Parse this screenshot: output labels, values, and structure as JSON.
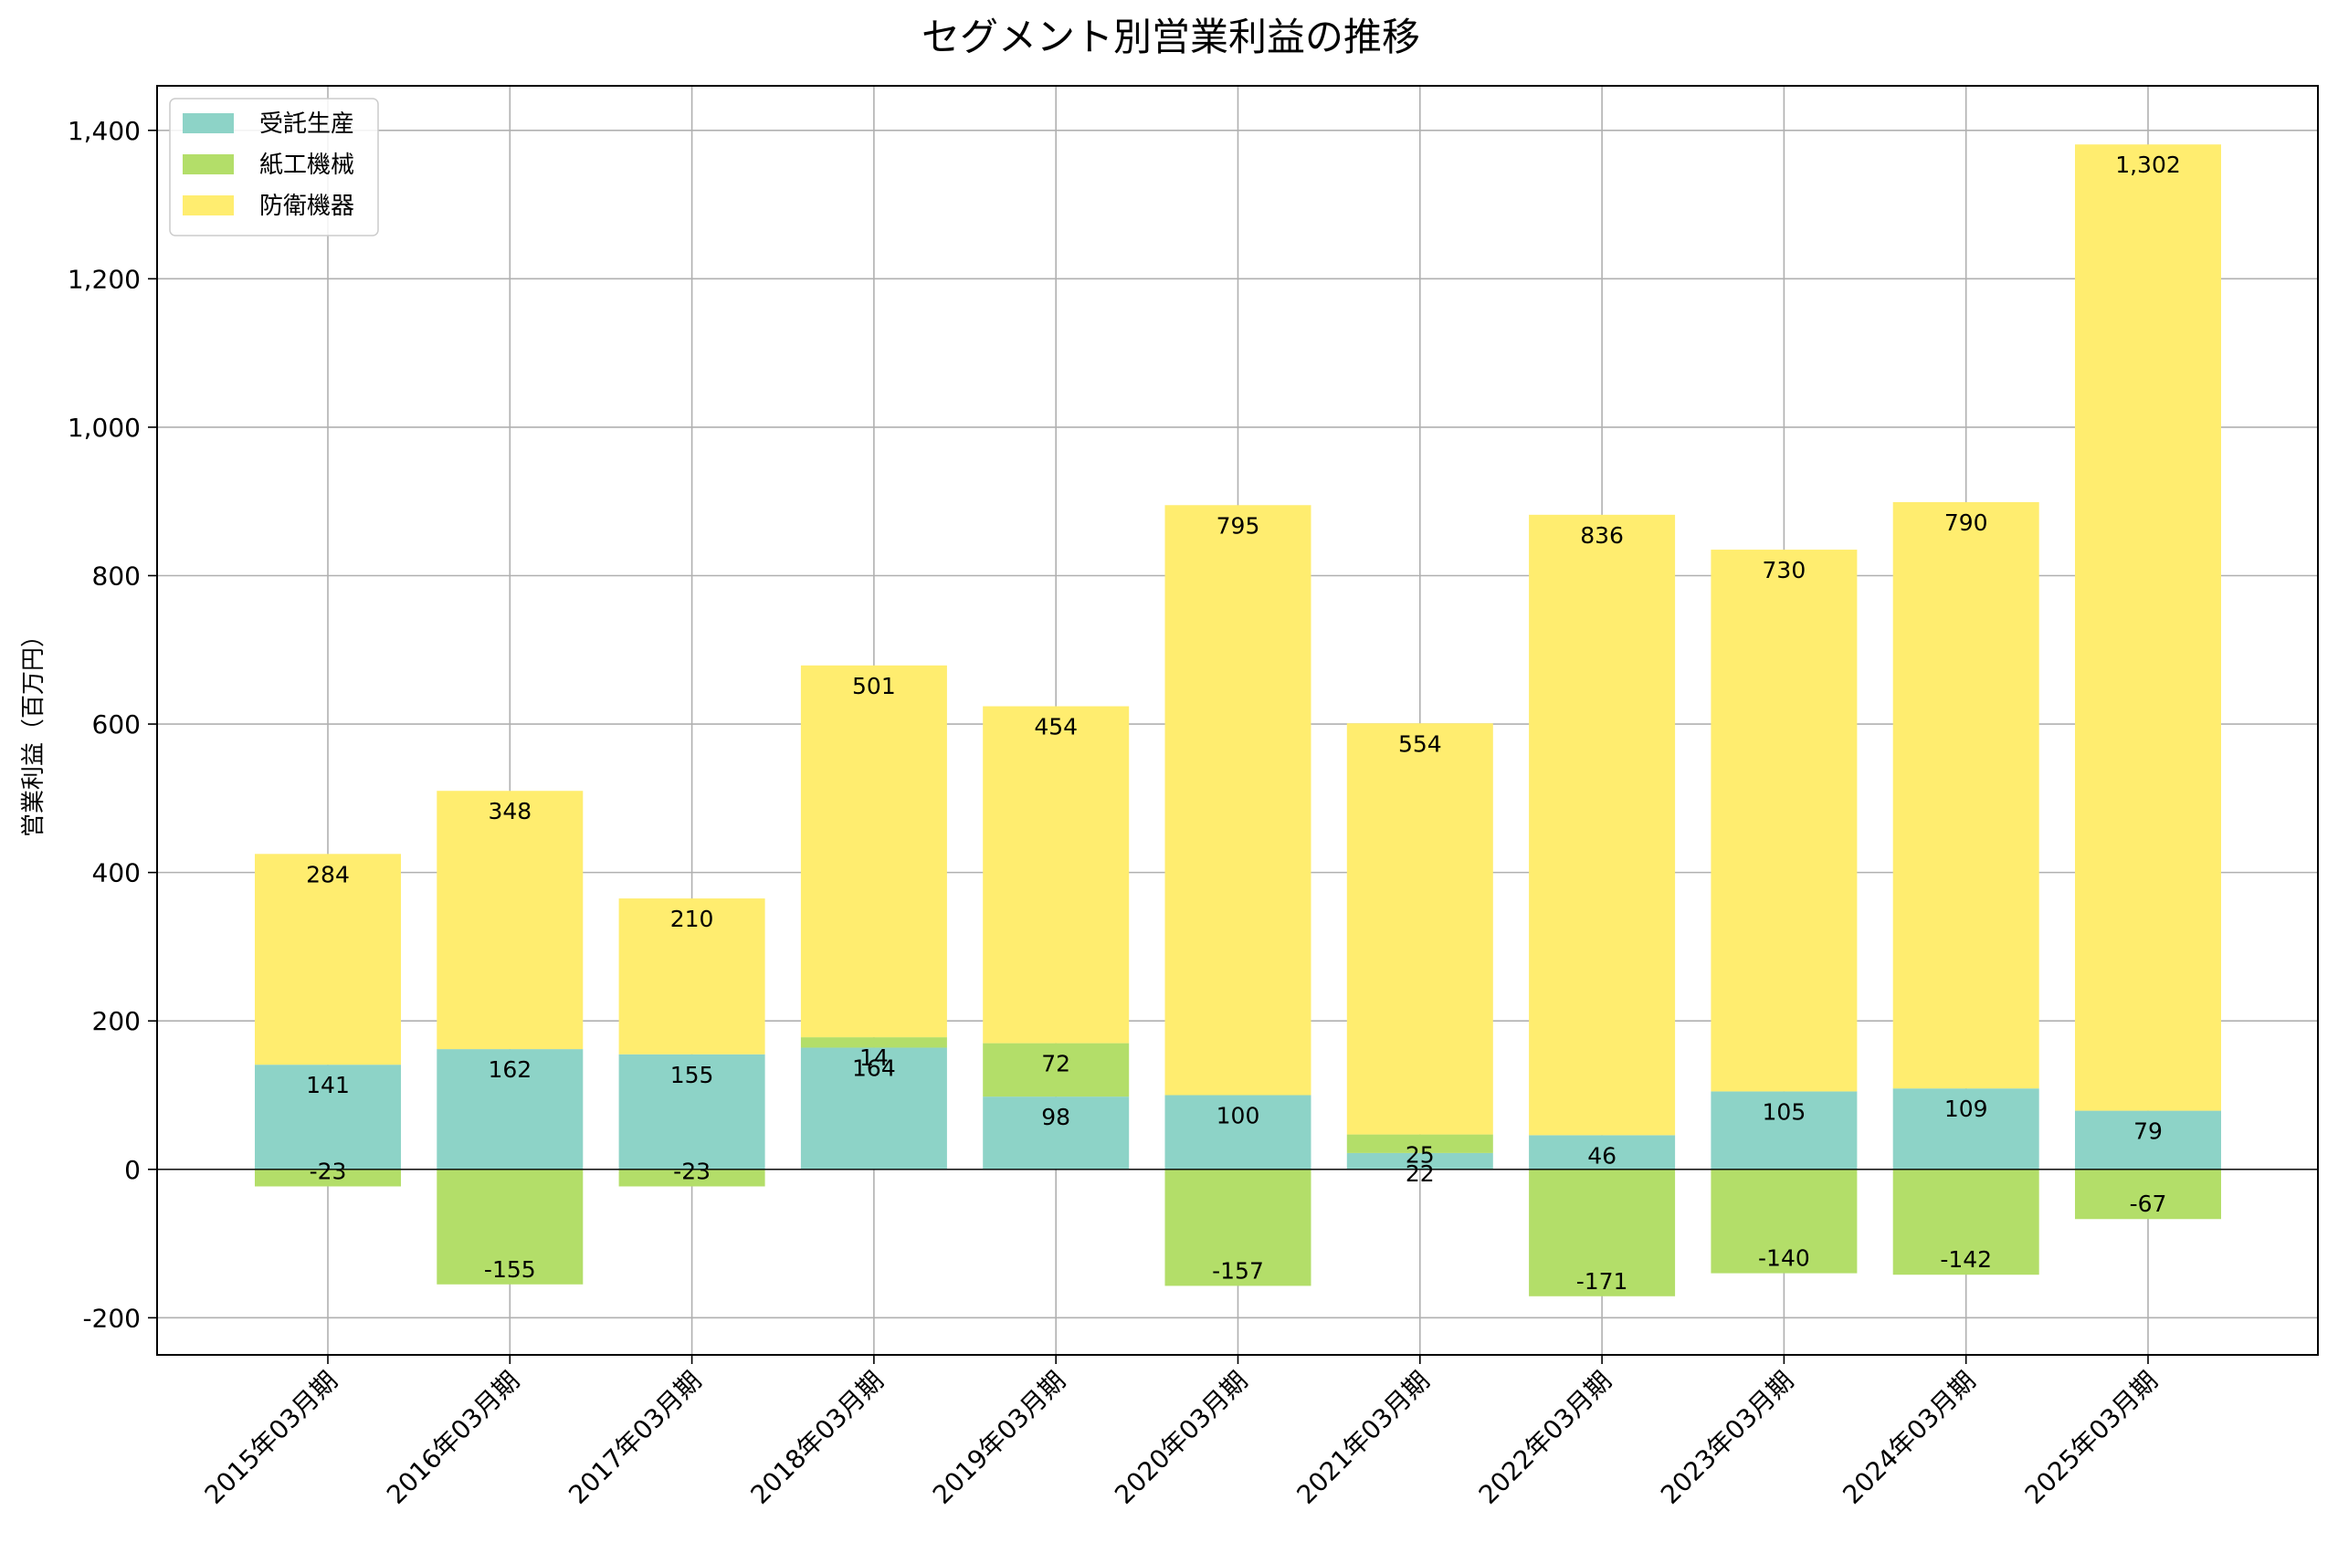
{
  "chart_data": {
    "type": "bar",
    "stacked": true,
    "title": "セグメント別営業利益の推移",
    "xlabel": "",
    "ylabel": "営業利益（百万円）",
    "categories": [
      "2015年03月期",
      "2016年03月期",
      "2017年03月期",
      "2018年03月期",
      "2019年03月期",
      "2020年03月期",
      "2021年03月期",
      "2022年03月期",
      "2023年03月期",
      "2024年03月期",
      "2025年03月期"
    ],
    "series": [
      {
        "name": "受託生産",
        "color": "#8dd3c7",
        "values": [
          141,
          162,
          155,
          164,
          98,
          100,
          22,
          46,
          105,
          109,
          79
        ]
      },
      {
        "name": "紙工機械",
        "color": "#b3de69",
        "values": [
          -23,
          -155,
          -23,
          14,
          72,
          -157,
          25,
          -171,
          -140,
          -142,
          -67
        ]
      },
      {
        "name": "防衛機器",
        "color": "#ffed6f",
        "values": [
          284,
          348,
          210,
          501,
          454,
          795,
          554,
          836,
          730,
          790,
          1302
        ]
      }
    ],
    "ylim": [
      -250,
      1460
    ],
    "yticks": [
      -200,
      0,
      200,
      400,
      600,
      800,
      1000,
      1200,
      1400
    ],
    "ytick_labels": [
      "-200",
      "0",
      "200",
      "400",
      "600",
      "800",
      "1,000",
      "1,200",
      "1,400"
    ],
    "data_labels": [
      [
        "141",
        "162",
        "155",
        "164",
        "98",
        "100",
        "22",
        "46",
        "105",
        "109",
        "79"
      ],
      [
        "-23",
        "-155",
        "-23",
        "14",
        "72",
        "-157",
        "25",
        "-171",
        "-140",
        "-142",
        "-67"
      ],
      [
        "284",
        "348",
        "210",
        "501",
        "454",
        "795",
        "554",
        "836",
        "730",
        "790",
        "1,302"
      ]
    ],
    "grid": true,
    "legend_position": "top-left"
  }
}
